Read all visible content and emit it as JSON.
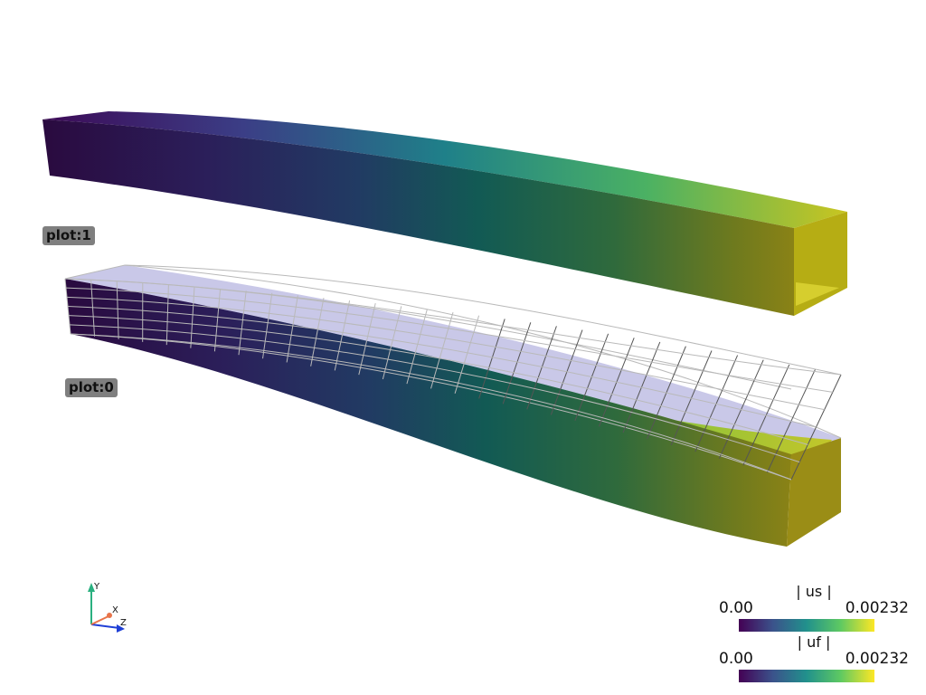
{
  "plot_labels": {
    "plot1": "plot:1",
    "plot0": "plot:0"
  },
  "colorbars": {
    "us": {
      "title": "| us |",
      "min": "0.00",
      "max": "0.00232"
    },
    "uf": {
      "title": "| uf |",
      "min": "0.00",
      "max": "0.00232"
    }
  },
  "axes": {
    "x": "X",
    "y": "Y",
    "z": "Z",
    "colors": {
      "x": "#e8744a",
      "y": "#2ab080",
      "z": "#1f3fd6"
    }
  },
  "colormap": [
    "#440154",
    "#3b528b",
    "#21918c",
    "#5ec962",
    "#fde725"
  ]
}
